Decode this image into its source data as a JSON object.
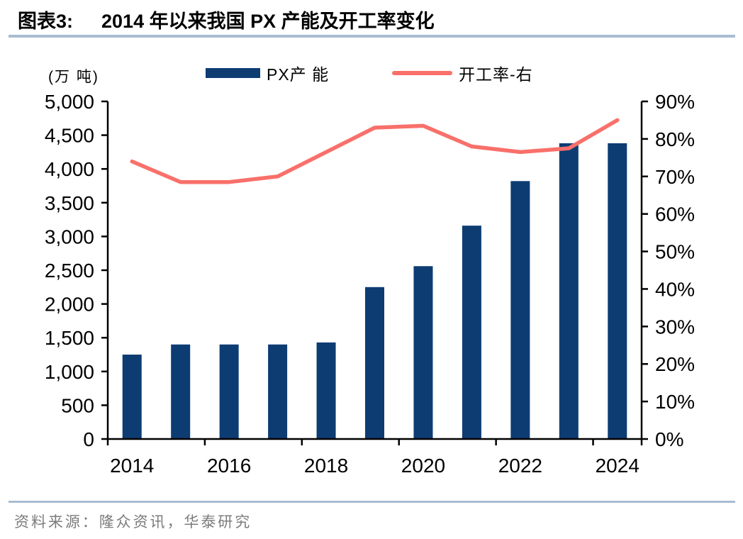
{
  "header": {
    "tag": "图表3:",
    "title": "2014 年以来我国 PX 产能及开工率变化"
  },
  "legend": [
    {
      "label": "PX产 能",
      "type": "bar"
    },
    {
      "label": "开工率-右",
      "type": "line"
    }
  ],
  "footer": {
    "source": "资料来源：隆众资讯，华泰研究"
  },
  "colors": {
    "bar": "#0d3c73",
    "line": "#f9706a",
    "rule": "#a9bdd1",
    "axis": "#000000",
    "footer_text": "#7c7c7c"
  },
  "chart_data": {
    "type": "bar+line",
    "title": "2014 年以来我国 PX 产能及开工率变化",
    "categories": [
      2014,
      2015,
      2016,
      2017,
      2018,
      2019,
      2020,
      2021,
      2022,
      2023,
      2024
    ],
    "series": [
      {
        "name": "PX产 能",
        "type": "bar",
        "axis": "left",
        "values": [
          1250,
          1400,
          1400,
          1400,
          1430,
          2250,
          2560,
          3160,
          3820,
          4380,
          4380
        ]
      },
      {
        "name": "开工率-右",
        "type": "line",
        "axis": "right",
        "values": [
          74,
          68.5,
          68.5,
          70,
          76.5,
          83,
          83.5,
          78,
          76.5,
          77.5,
          85
        ]
      }
    ],
    "left_axis": {
      "label": "(万 吨)",
      "min": 0,
      "max": 5000,
      "step": 500,
      "tick_labels": [
        "5,000",
        "4,500",
        "4,000",
        "3,500",
        "3,000",
        "2,500",
        "2,000",
        "1,500",
        "1,000",
        "500",
        "0"
      ]
    },
    "right_axis": {
      "min": 0,
      "max": 90,
      "step": 10,
      "tick_labels": [
        "90%",
        "80%",
        "70%",
        "60%",
        "50%",
        "40%",
        "30%",
        "20%",
        "10%",
        "0%"
      ]
    },
    "x_tick_labels": [
      "2014",
      "2016",
      "2018",
      "2020",
      "2022",
      "2024"
    ],
    "grid": false,
    "legend_position": "top"
  }
}
